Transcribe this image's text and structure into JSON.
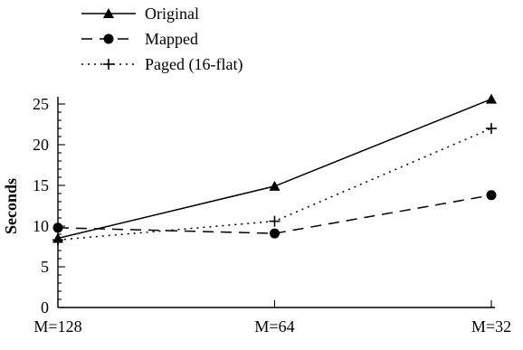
{
  "chart_data": {
    "type": "line",
    "categories": [
      "M=128",
      "M=64",
      "M=32"
    ],
    "ylabel": "Seconds",
    "ylim": [
      0,
      25
    ],
    "yticks": [
      0,
      5,
      10,
      15,
      20,
      25
    ],
    "grid": false,
    "legend_position": "top-left",
    "series": [
      {
        "name": "Original",
        "values": [
          8.5,
          14.9,
          25.6
        ],
        "line_style": "solid",
        "marker": "triangle",
        "color": "#000000"
      },
      {
        "name": "Mapped",
        "values": [
          9.8,
          9.1,
          13.8
        ],
        "line_style": "dashed",
        "marker": "circle",
        "color": "#000000"
      },
      {
        "name": "Paged (16-flat)",
        "values": [
          8.3,
          10.6,
          22.0
        ],
        "line_style": "dotted",
        "marker": "plus",
        "color": "#000000"
      }
    ]
  }
}
